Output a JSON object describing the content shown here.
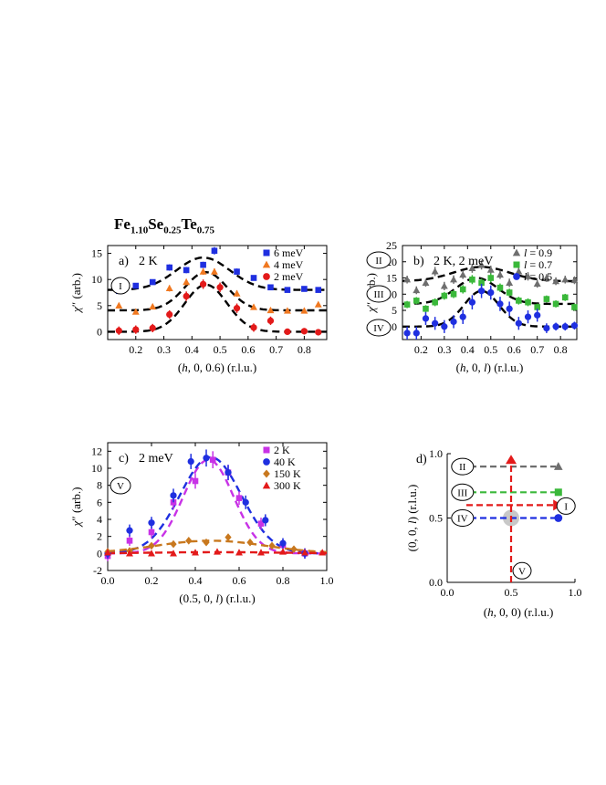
{
  "figure": {
    "compound": {
      "base": [
        "Fe",
        "Se",
        "Te"
      ],
      "subs": [
        "1.10",
        "0.25",
        "0.75"
      ]
    }
  },
  "chart_data": [
    {
      "id": "a",
      "type": "scatter",
      "panel_label": "a)",
      "condition": "2 K",
      "roman": "I",
      "xlabel": "(h, 0, 0.6) (r.l.u.)",
      "xlabel_parts": [
        "(",
        "h",
        ", 0, 0.6) (r.l.u.)"
      ],
      "ylabel": "χ'' (arb.)",
      "xlim": [
        0.1,
        0.88
      ],
      "ylim": [
        -1.5,
        16.5
      ],
      "xticks": [
        0.2,
        0.3,
        0.4,
        0.5,
        0.6,
        0.7,
        0.8
      ],
      "yticks": [
        0,
        5,
        10,
        15
      ],
      "legend_position": "top-right",
      "series": [
        {
          "name": "6 meV",
          "marker": "square",
          "color": "#1f2fe0",
          "x": [
            0.14,
            0.2,
            0.26,
            0.32,
            0.38,
            0.44,
            0.48,
            0.56,
            0.62,
            0.68,
            0.74,
            0.8,
            0.85
          ],
          "y": [
            7.8,
            8.8,
            9.5,
            12.3,
            11.8,
            12.8,
            15.5,
            11.5,
            10.3,
            8.5,
            8.0,
            8.2,
            8.0
          ],
          "err": [
            0.5,
            0.5,
            0.5,
            0.6,
            0.6,
            0.6,
            0.7,
            0.6,
            0.5,
            0.5,
            0.5,
            0.5,
            0.5
          ],
          "fit": {
            "base": 8.0,
            "amp": 6.2,
            "center": 0.44,
            "sigma": 0.095
          }
        },
        {
          "name": "4 meV",
          "marker": "triangle",
          "color": "#f07820",
          "x": [
            0.14,
            0.2,
            0.26,
            0.32,
            0.38,
            0.44,
            0.48,
            0.56,
            0.62,
            0.68,
            0.74,
            0.8,
            0.85
          ],
          "y": [
            5.0,
            3.8,
            4.8,
            8.3,
            9.5,
            11.5,
            11.5,
            7.3,
            4.7,
            4.1,
            4.0,
            4.0,
            5.2
          ],
          "err": [
            0.5,
            0.5,
            0.5,
            0.6,
            0.6,
            0.6,
            0.6,
            0.6,
            0.5,
            0.5,
            0.5,
            0.5,
            0.5
          ],
          "fit": {
            "base": 4.1,
            "amp": 7.3,
            "center": 0.45,
            "sigma": 0.075
          }
        },
        {
          "name": "2 meV",
          "marker": "circle",
          "color": "#e31a1a",
          "x": [
            0.14,
            0.2,
            0.26,
            0.32,
            0.38,
            0.44,
            0.5,
            0.56,
            0.62,
            0.68,
            0.74,
            0.8,
            0.85
          ],
          "y": [
            0.2,
            0.4,
            0.7,
            3.3,
            6.8,
            9.1,
            8.5,
            4.5,
            0.8,
            2.1,
            0.0,
            0.1,
            -0.1
          ],
          "err": [
            0.8,
            0.8,
            0.8,
            0.8,
            0.9,
            0.9,
            0.9,
            0.9,
            0.8,
            0.8,
            0.6,
            0.6,
            0.6
          ],
          "fit": {
            "base": 0.0,
            "amp": 9.0,
            "center": 0.45,
            "sigma": 0.075
          }
        }
      ]
    },
    {
      "id": "b",
      "type": "scatter",
      "panel_label": "b)",
      "condition": "2 K, 2 meV",
      "roman": [
        "II",
        "III",
        "IV"
      ],
      "xlabel": "(h, 0, l) (r.l.u.)",
      "xlabel_parts": [
        "(",
        "h",
        ", 0, ",
        "l",
        ") (r.l.u.)"
      ],
      "ylabel": "χ'' (arb.)",
      "xlim": [
        0.12,
        0.87
      ],
      "ylim": [
        -4,
        25
      ],
      "xticks": [
        0.2,
        0.3,
        0.4,
        0.5,
        0.6,
        0.7,
        0.8
      ],
      "yticks": [
        0,
        5,
        10,
        15,
        20,
        25
      ],
      "legend_position": "top-right",
      "series": [
        {
          "name": "l = 0.9",
          "name_parts": [
            "l",
            " = 0.9"
          ],
          "marker": "triangle",
          "color": "#6e6e6e",
          "x": [
            0.14,
            0.18,
            0.22,
            0.26,
            0.3,
            0.34,
            0.38,
            0.42,
            0.46,
            0.5,
            0.54,
            0.58,
            0.62,
            0.66,
            0.7,
            0.74,
            0.78,
            0.82,
            0.86
          ],
          "y": [
            14.5,
            11.2,
            13.5,
            17.0,
            12.5,
            14.5,
            16.0,
            18.0,
            19.0,
            17.5,
            16.0,
            13.5,
            17.0,
            15.5,
            13.2,
            15.0,
            14.0,
            14.5,
            14.3
          ],
          "err": [
            1.2,
            1.2,
            1.2,
            1.4,
            1.3,
            1.3,
            1.3,
            1.4,
            1.4,
            1.3,
            1.3,
            1.3,
            1.4,
            1.3,
            1.2,
            1.2,
            1.2,
            1.2,
            1.2
          ],
          "fit": {
            "base": 14.0,
            "amp": 4.4,
            "center": 0.46,
            "sigma": 0.12
          }
        },
        {
          "name": "l = 0.7",
          "name_parts": [
            "l",
            " = 0.7"
          ],
          "marker": "square",
          "color": "#3ab83a",
          "x": [
            0.14,
            0.18,
            0.22,
            0.26,
            0.3,
            0.34,
            0.38,
            0.42,
            0.46,
            0.5,
            0.54,
            0.58,
            0.62,
            0.66,
            0.7,
            0.74,
            0.78,
            0.82,
            0.86
          ],
          "y": [
            6.8,
            8.0,
            5.5,
            7.5,
            9.5,
            10.0,
            11.5,
            14.5,
            13.5,
            15.0,
            12.0,
            10.5,
            8.0,
            7.5,
            6.0,
            8.5,
            7.0,
            9.0,
            6.0
          ],
          "err": [
            1.1,
            1.1,
            1.1,
            1.2,
            1.2,
            1.2,
            1.3,
            1.4,
            1.3,
            1.4,
            1.3,
            1.2,
            1.2,
            1.2,
            1.1,
            1.1,
            1.1,
            1.1,
            1.1
          ],
          "fit": {
            "base": 7.0,
            "amp": 8.0,
            "center": 0.44,
            "sigma": 0.09
          }
        },
        {
          "name": "l = 0.5",
          "name_parts": [
            "l",
            " = 0.5"
          ],
          "marker": "circle",
          "color": "#1f2fe0",
          "x": [
            0.14,
            0.18,
            0.22,
            0.26,
            0.3,
            0.34,
            0.38,
            0.42,
            0.46,
            0.5,
            0.54,
            0.58,
            0.62,
            0.66,
            0.7,
            0.74,
            0.78,
            0.82,
            0.86
          ],
          "y": [
            -2.0,
            -2.0,
            2.5,
            1.0,
            0.0,
            1.5,
            3.0,
            7.5,
            11.0,
            10.5,
            7.0,
            5.5,
            1.0,
            3.0,
            3.5,
            -0.5,
            0.0,
            0.0,
            0.3
          ],
          "err": [
            2.0,
            2.0,
            2.0,
            2.0,
            2.0,
            2.0,
            2.2,
            2.2,
            2.2,
            2.2,
            2.2,
            2.2,
            2.0,
            2.0,
            2.0,
            1.5,
            1.2,
            1.2,
            1.2
          ],
          "fit": {
            "base": 0.0,
            "amp": 11.0,
            "center": 0.46,
            "sigma": 0.075
          }
        }
      ]
    },
    {
      "id": "c",
      "type": "scatter",
      "panel_label": "c)",
      "condition": "2 meV",
      "roman": "V",
      "xlabel": "(0.5, 0, l) (r.l.u.)",
      "xlabel_parts": [
        "(0.5, 0, ",
        "l",
        ") (r.l.u.)"
      ],
      "ylabel": "χ'' (arb.)",
      "xlim": [
        0.0,
        1.0
      ],
      "ylim": [
        -2,
        13
      ],
      "xticks": [
        0.0,
        0.2,
        0.4,
        0.6,
        0.8,
        1.0
      ],
      "yticks": [
        -2,
        0,
        2,
        4,
        6,
        8,
        10,
        12
      ],
      "legend_position": "top-right",
      "series": [
        {
          "name": "2 K",
          "marker": "square",
          "color": "#c832e6",
          "x": [
            0.0,
            0.1,
            0.2,
            0.3,
            0.4,
            0.48,
            0.55,
            0.6,
            0.7,
            0.8,
            0.9
          ],
          "y": [
            -0.3,
            1.5,
            2.5,
            6.0,
            8.5,
            11.0,
            9.5,
            6.5,
            3.5,
            1.0,
            0.0
          ],
          "err": [
            0.6,
            0.6,
            0.7,
            0.8,
            0.9,
            1.0,
            0.9,
            0.8,
            0.7,
            0.6,
            0.6
          ],
          "fit": {
            "base": 0.0,
            "amp": 11.0,
            "center": 0.46,
            "sigma": 0.115
          }
        },
        {
          "name": "40 K",
          "marker": "circle",
          "color": "#1f2fe0",
          "x": [
            0.0,
            0.1,
            0.2,
            0.3,
            0.38,
            0.45,
            0.55,
            0.63,
            0.72,
            0.8,
            0.9
          ],
          "y": [
            0.0,
            2.7,
            3.6,
            6.8,
            10.8,
            11.2,
            9.5,
            6.0,
            3.9,
            1.2,
            0.0
          ],
          "err": [
            0.6,
            0.7,
            0.7,
            0.8,
            0.9,
            1.0,
            0.9,
            0.8,
            0.7,
            0.6,
            0.6
          ],
          "fit": {
            "base": 0.0,
            "amp": 11.3,
            "center": 0.47,
            "sigma": 0.14
          }
        },
        {
          "name": "150 K",
          "marker": "diamond",
          "color": "#c8781e",
          "x": [
            0.0,
            0.1,
            0.2,
            0.3,
            0.37,
            0.45,
            0.55,
            0.65,
            0.75,
            0.85
          ],
          "y": [
            0.2,
            0.3,
            0.9,
            1.1,
            1.5,
            1.3,
            1.9,
            1.3,
            0.9,
            0.5
          ],
          "err": [
            0.3,
            0.3,
            0.3,
            0.3,
            0.3,
            0.3,
            0.3,
            0.3,
            0.3,
            0.3
          ],
          "fit": {
            "base": 0.0,
            "amp": 1.5,
            "center": 0.47,
            "sigma": 0.25
          }
        },
        {
          "name": "300 K",
          "marker": "triangle",
          "color": "#e31a1a",
          "x": [
            0.0,
            0.1,
            0.2,
            0.3,
            0.4,
            0.5,
            0.6,
            0.7,
            0.8,
            0.9,
            0.98
          ],
          "y": [
            0.1,
            0.0,
            0.0,
            0.0,
            0.1,
            0.2,
            0.1,
            0.1,
            0.2,
            0.1,
            0.1
          ],
          "err": [
            0.3,
            0.3,
            0.3,
            0.3,
            0.3,
            0.3,
            0.3,
            0.3,
            0.3,
            0.3,
            0.3
          ],
          "fit": {
            "base": 0.0,
            "amp": 0.15,
            "center": 0.5,
            "sigma": 0.3
          }
        }
      ]
    },
    {
      "id": "d",
      "type": "diagram",
      "panel_label": "d)",
      "xlabel": "(h, 0, 0) (r.l.u.)",
      "xlabel_parts": [
        "(",
        "h",
        ", 0, 0) (r.l.u.)"
      ],
      "ylabel": "(0, 0, l) (r.l.u.)",
      "ylabel_parts": [
        "(0, 0, ",
        "l",
        ") (r.l.u.)"
      ],
      "xlim": [
        0.0,
        1.0
      ],
      "ylim": [
        0.0,
        1.0
      ],
      "xticks": [
        "0.0",
        "0.5",
        "1.0"
      ],
      "yticks": [
        "0.0",
        "0.5",
        "1.0"
      ],
      "cuts": [
        {
          "roman": "II",
          "l": 0.9,
          "color": "#6e6e6e",
          "marker": "triangle"
        },
        {
          "roman": "III",
          "l": 0.7,
          "color": "#3ab83a",
          "marker": "square"
        },
        {
          "roman": "IV",
          "l": 0.5,
          "color": "#1f2fe0",
          "marker": "circle"
        }
      ],
      "scan_h": {
        "roman": "I",
        "l": 0.6,
        "color": "#e31a1a"
      },
      "scan_l": {
        "roman": "V",
        "h": 0.5,
        "color": "#e31a1a"
      },
      "spot": {
        "h": 0.5,
        "l": 0.5,
        "color": "#c8c8c8"
      }
    }
  ]
}
